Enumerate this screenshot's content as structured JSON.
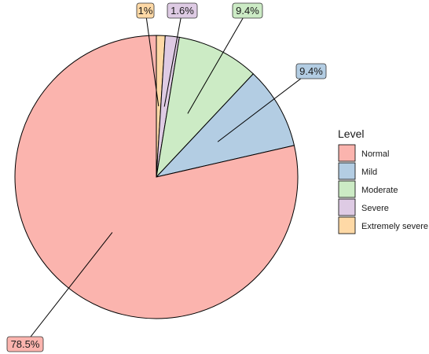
{
  "chart_data": {
    "type": "pie",
    "legend_title": "Level",
    "legend_position": "right",
    "categories": [
      "Normal",
      "Mild",
      "Moderate",
      "Severe",
      "Extremely severe"
    ],
    "values": [
      78.5,
      9.4,
      9.4,
      1.6,
      1.0
    ],
    "labels": [
      "78.5%",
      "9.4%",
      "9.4%",
      "1.6%",
      "1%"
    ],
    "colors": [
      "#FBB4AE",
      "#B3CDE3",
      "#CCEBC5",
      "#DECBE4",
      "#FED9A6"
    ],
    "direction": "clockwise",
    "start": "top"
  }
}
